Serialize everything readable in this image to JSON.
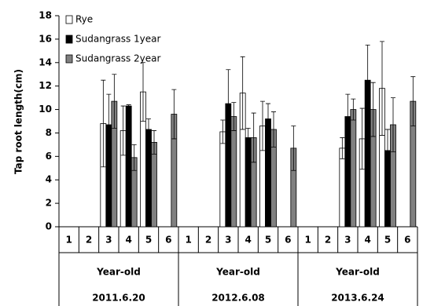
{
  "chart_data": {
    "type": "bar",
    "y_label": "Tap root length(cm)",
    "categories": [
      "1",
      "2",
      "3",
      "4",
      "5",
      "6",
      "1",
      "2",
      "3",
      "4",
      "5",
      "6",
      "1",
      "2",
      "3",
      "4",
      "5",
      "6"
    ],
    "group_labels": [
      [
        "Year-old",
        "2011.6.20"
      ],
      [
        "Year-old",
        "2012.6.08"
      ],
      [
        "Year-old",
        "2013.6.24"
      ]
    ],
    "series": [
      {
        "name": "Rye",
        "color": "#ffffff",
        "values": [
          null,
          null,
          8.8,
          8.2,
          11.5,
          null,
          null,
          null,
          8.1,
          11.4,
          8.6,
          null,
          null,
          null,
          6.7,
          7.5,
          11.8,
          null
        ],
        "errors": [
          null,
          null,
          3.7,
          2.1,
          2.5,
          null,
          null,
          null,
          1.0,
          3.1,
          2.1,
          null,
          null,
          null,
          0.9,
          2.6,
          4.0,
          null
        ]
      },
      {
        "name": "Sudangrass 1year",
        "color": "#000000",
        "values": [
          null,
          null,
          8.7,
          10.3,
          8.3,
          null,
          null,
          null,
          10.5,
          7.6,
          9.2,
          null,
          null,
          null,
          9.4,
          12.5,
          6.5,
          null
        ],
        "errors": [
          null,
          null,
          2.6,
          0.1,
          0.9,
          null,
          null,
          null,
          2.9,
          0.8,
          1.3,
          null,
          null,
          null,
          1.9,
          3.0,
          1.8,
          null
        ]
      },
      {
        "name": "Sudangrass 2year",
        "color": "#808080",
        "values": [
          null,
          null,
          10.7,
          5.9,
          7.2,
          9.6,
          null,
          null,
          9.4,
          7.6,
          8.3,
          6.7,
          null,
          null,
          10.0,
          10.0,
          8.7,
          10.7
        ],
        "errors": [
          null,
          null,
          2.3,
          1.1,
          1.0,
          2.1,
          null,
          null,
          1.2,
          2.1,
          1.5,
          1.9,
          null,
          null,
          0.9,
          2.3,
          2.3,
          2.1
        ]
      }
    ],
    "ylim": [
      0,
      18
    ],
    "yticks": [
      0,
      2,
      4,
      6,
      8,
      10,
      12,
      14,
      16,
      18
    ],
    "legend": "top-left",
    "grid": false
  }
}
